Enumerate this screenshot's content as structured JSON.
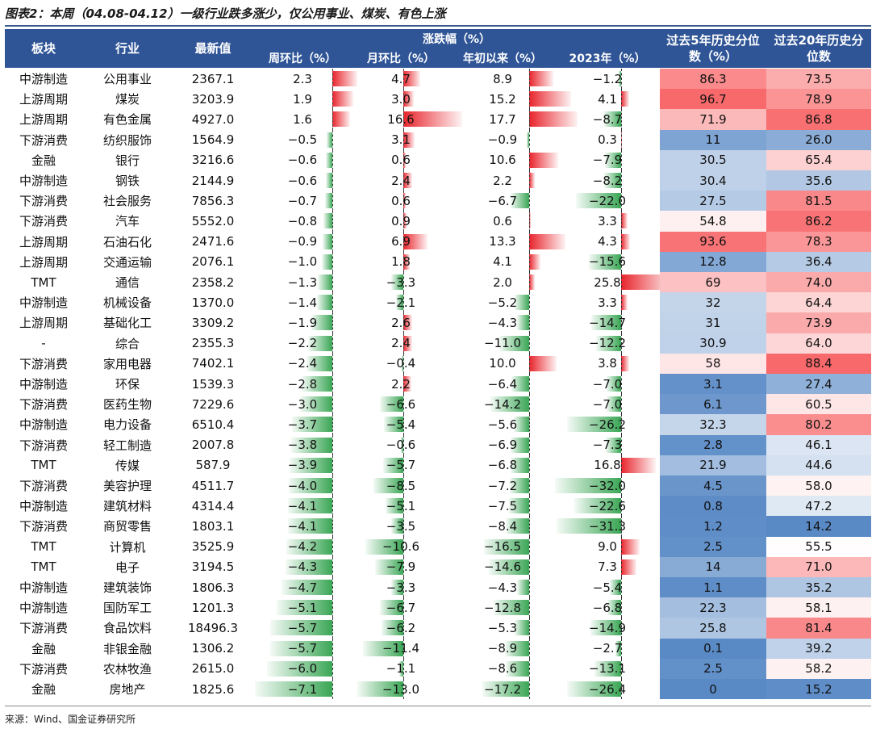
{
  "title": "图表2：本周（04.08-04.12）一级行业跌多涨少，仅公用事业、煤炭、有色上涨",
  "source": "来源：Wind、国金证券研究所",
  "colors": {
    "header_bg": "#2f5597",
    "pos_bar": "#e8242c",
    "neg_bar": "#3aa655",
    "hi": "#f8696b",
    "lo": "#5a8ac6",
    "mid": "#ffffff"
  },
  "chart_data": {
    "type": "table",
    "headers": {
      "sector": "板块",
      "industry": "行业",
      "latest": "最新值",
      "change_group": "涨跌幅（%）",
      "weekly": "周环比（%）",
      "monthly": "月环比（%）",
      "ytd": "年初以来（%）",
      "y2023": "2023年（%）",
      "pct5": "过去5年历史分位数（%）",
      "pct20": "过去20年历史分位数"
    },
    "rows": [
      {
        "sector": "中游制造",
        "industry": "公用事业",
        "latest": "2367.1",
        "weekly": 2.3,
        "monthly": 4.7,
        "ytd": 8.9,
        "y2023": -1.2,
        "pct5": "86.3",
        "pct20": "73.5"
      },
      {
        "sector": "上游周期",
        "industry": "煤炭",
        "latest": "3203.9",
        "weekly": 1.9,
        "monthly": 3.0,
        "ytd": 15.2,
        "y2023": 4.1,
        "pct5": "96.7",
        "pct20": "78.9"
      },
      {
        "sector": "上游周期",
        "industry": "有色金属",
        "latest": "4927.0",
        "weekly": 1.6,
        "monthly": 16.6,
        "ytd": 17.7,
        "y2023": -8.7,
        "pct5": "71.9",
        "pct20": "86.8"
      },
      {
        "sector": "下游消费",
        "industry": "纺织服饰",
        "latest": "1564.9",
        "weekly": -0.5,
        "monthly": 3.1,
        "ytd": -0.9,
        "y2023": 0.3,
        "pct5": "11",
        "pct20": "26.0"
      },
      {
        "sector": "金融",
        "industry": "银行",
        "latest": "3216.6",
        "weekly": -0.6,
        "monthly": 0.6,
        "ytd": 10.6,
        "y2023": -7.9,
        "pct5": "30.5",
        "pct20": "65.4"
      },
      {
        "sector": "中游制造",
        "industry": "钢铁",
        "latest": "2144.9",
        "weekly": -0.6,
        "monthly": 2.4,
        "ytd": 2.2,
        "y2023": -8.2,
        "pct5": "30.4",
        "pct20": "35.6"
      },
      {
        "sector": "下游消费",
        "industry": "社会服务",
        "latest": "7856.3",
        "weekly": -0.7,
        "monthly": 0.6,
        "ytd": -6.7,
        "y2023": -22.0,
        "pct5": "27.5",
        "pct20": "81.5"
      },
      {
        "sector": "下游消费",
        "industry": "汽车",
        "latest": "5552.0",
        "weekly": -0.8,
        "monthly": 0.9,
        "ytd": 0.6,
        "y2023": 3.3,
        "pct5": "54.8",
        "pct20": "86.2"
      },
      {
        "sector": "上游周期",
        "industry": "石油石化",
        "latest": "2471.6",
        "weekly": -0.9,
        "monthly": 6.9,
        "ytd": 13.3,
        "y2023": 4.3,
        "pct5": "93.6",
        "pct20": "78.3"
      },
      {
        "sector": "上游周期",
        "industry": "交通运输",
        "latest": "2076.1",
        "weekly": -1.0,
        "monthly": 1.8,
        "ytd": 4.1,
        "y2023": -15.6,
        "pct5": "12.8",
        "pct20": "36.4"
      },
      {
        "sector": "TMT",
        "industry": "通信",
        "latest": "2358.2",
        "weekly": -1.3,
        "monthly": -3.3,
        "ytd": 2.0,
        "y2023": 25.8,
        "pct5": "69",
        "pct20": "74.0"
      },
      {
        "sector": "中游制造",
        "industry": "机械设备",
        "latest": "1370.0",
        "weekly": -1.4,
        "monthly": -2.1,
        "ytd": -5.2,
        "y2023": 3.3,
        "pct5": "32",
        "pct20": "64.4"
      },
      {
        "sector": "上游周期",
        "industry": "基础化工",
        "latest": "3309.2",
        "weekly": -1.9,
        "monthly": 2.6,
        "ytd": -4.3,
        "y2023": -14.7,
        "pct5": "31",
        "pct20": "73.9"
      },
      {
        "sector": "-",
        "industry": "综合",
        "latest": "2355.3",
        "weekly": -2.2,
        "monthly": 2.4,
        "ytd": -11.0,
        "y2023": -12.2,
        "pct5": "30.9",
        "pct20": "64.0"
      },
      {
        "sector": "下游消费",
        "industry": "家用电器",
        "latest": "7402.1",
        "weekly": -2.4,
        "monthly": -0.4,
        "ytd": 10.0,
        "y2023": 3.8,
        "pct5": "58",
        "pct20": "88.4"
      },
      {
        "sector": "中游制造",
        "industry": "环保",
        "latest": "1539.3",
        "weekly": -2.8,
        "monthly": 2.2,
        "ytd": -6.4,
        "y2023": -7.0,
        "pct5": "3.1",
        "pct20": "27.4"
      },
      {
        "sector": "下游消费",
        "industry": "医药生物",
        "latest": "7229.6",
        "weekly": -3.0,
        "monthly": -6.6,
        "ytd": -14.2,
        "y2023": -7.0,
        "pct5": "6.1",
        "pct20": "60.5"
      },
      {
        "sector": "中游制造",
        "industry": "电力设备",
        "latest": "6510.4",
        "weekly": -3.7,
        "monthly": -5.4,
        "ytd": -5.6,
        "y2023": -26.2,
        "pct5": "32.3",
        "pct20": "80.2"
      },
      {
        "sector": "下游消费",
        "industry": "轻工制造",
        "latest": "2007.8",
        "weekly": -3.8,
        "monthly": -0.6,
        "ytd": -6.9,
        "y2023": -7.3,
        "pct5": "2.8",
        "pct20": "46.1"
      },
      {
        "sector": "TMT",
        "industry": "传媒",
        "latest": "587.9",
        "weekly": -3.9,
        "monthly": -5.7,
        "ytd": -6.8,
        "y2023": 16.8,
        "pct5": "21.9",
        "pct20": "44.6"
      },
      {
        "sector": "下游消费",
        "industry": "美容护理",
        "latest": "4511.7",
        "weekly": -4.0,
        "monthly": -8.5,
        "ytd": -7.2,
        "y2023": -32.0,
        "pct5": "4.5",
        "pct20": "58.0"
      },
      {
        "sector": "中游制造",
        "industry": "建筑材料",
        "latest": "4314.4",
        "weekly": -4.1,
        "monthly": -5.1,
        "ytd": -7.5,
        "y2023": -22.6,
        "pct5": "0.8",
        "pct20": "47.2"
      },
      {
        "sector": "下游消费",
        "industry": "商贸零售",
        "latest": "1803.1",
        "weekly": -4.1,
        "monthly": -3.5,
        "ytd": -8.4,
        "y2023": -31.3,
        "pct5": "1.2",
        "pct20": "14.2"
      },
      {
        "sector": "TMT",
        "industry": "计算机",
        "latest": "3525.9",
        "weekly": -4.2,
        "monthly": -10.6,
        "ytd": -16.5,
        "y2023": 9.0,
        "pct5": "2.5",
        "pct20": "55.5"
      },
      {
        "sector": "TMT",
        "industry": "电子",
        "latest": "3194.5",
        "weekly": -4.3,
        "monthly": -7.9,
        "ytd": -14.6,
        "y2023": 7.3,
        "pct5": "14",
        "pct20": "71.0"
      },
      {
        "sector": "中游制造",
        "industry": "建筑装饰",
        "latest": "1806.3",
        "weekly": -4.7,
        "monthly": -3.3,
        "ytd": -4.3,
        "y2023": -5.4,
        "pct5": "1.1",
        "pct20": "35.2"
      },
      {
        "sector": "中游制造",
        "industry": "国防军工",
        "latest": "1201.3",
        "weekly": -5.1,
        "monthly": -6.7,
        "ytd": -12.8,
        "y2023": -6.8,
        "pct5": "22.3",
        "pct20": "58.1"
      },
      {
        "sector": "下游消费",
        "industry": "食品饮料",
        "latest": "18496.3",
        "weekly": -5.7,
        "monthly": -6.2,
        "ytd": -5.3,
        "y2023": -14.9,
        "pct5": "25.8",
        "pct20": "81.4"
      },
      {
        "sector": "金融",
        "industry": "非银金融",
        "latest": "1306.2",
        "weekly": -5.7,
        "monthly": -11.4,
        "ytd": -8.9,
        "y2023": -2.7,
        "pct5": "0.1",
        "pct20": "39.2"
      },
      {
        "sector": "下游消费",
        "industry": "农林牧渔",
        "latest": "2615.0",
        "weekly": -6.0,
        "monthly": -1.1,
        "ytd": -8.6,
        "y2023": -13.1,
        "pct5": "2.5",
        "pct20": "58.2"
      },
      {
        "sector": "金融",
        "industry": "房地产",
        "latest": "1825.6",
        "weekly": -7.1,
        "monthly": -13.0,
        "ytd": -17.2,
        "y2023": -26.4,
        "pct5": "0",
        "pct20": "15.2"
      }
    ]
  }
}
